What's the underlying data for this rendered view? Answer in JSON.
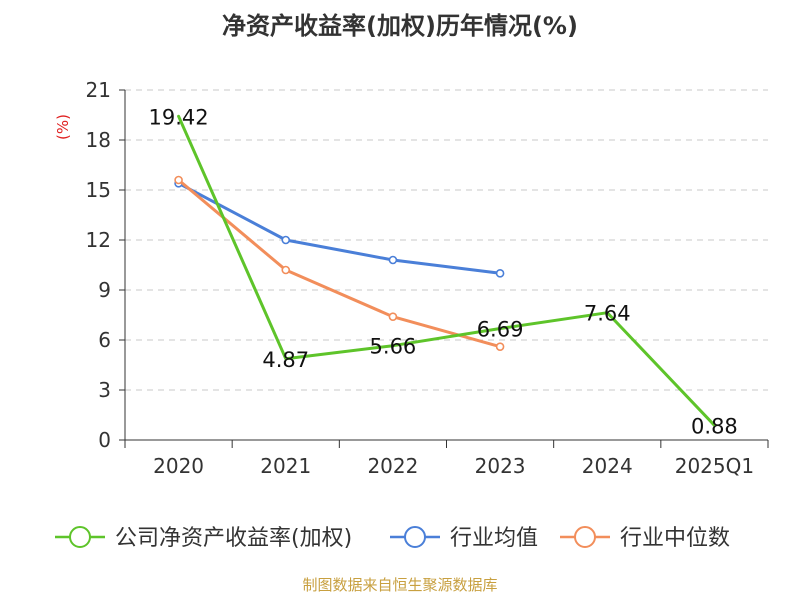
{
  "chart_data": {
    "type": "line",
    "title": "净资产收益率(加权)历年情况(%)",
    "ylabel": "(%)",
    "xlabel": "",
    "categories": [
      "2020",
      "2021",
      "2022",
      "2023",
      "2024",
      "2025Q1"
    ],
    "ylim": [
      0,
      21
    ],
    "yticks": [
      0,
      3,
      6,
      9,
      12,
      15,
      18,
      21
    ],
    "grid": true,
    "legend_position": "bottom",
    "series": [
      {
        "name": "公司净资产收益率(加权)",
        "color": "#5ec42a",
        "values": [
          19.42,
          4.87,
          5.66,
          6.69,
          7.64,
          0.88
        ],
        "labels": [
          "19.42",
          "4.87",
          "5.66",
          "6.69",
          "7.64",
          "0.88"
        ],
        "markers": false
      },
      {
        "name": "行业均值",
        "color": "#4a7fd8",
        "values": [
          15.4,
          12.0,
          10.8,
          10.0,
          null,
          null
        ],
        "markers": true
      },
      {
        "name": "行业中位数",
        "color": "#f28e5b",
        "values": [
          15.6,
          10.2,
          7.4,
          5.6,
          null,
          null
        ],
        "markers": true
      }
    ],
    "source": "制图数据来自恒生聚源数据库"
  }
}
